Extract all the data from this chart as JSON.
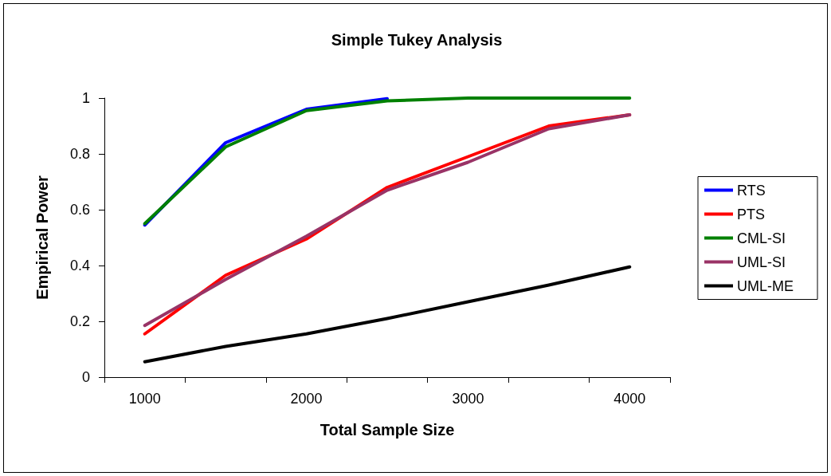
{
  "chart_data": {
    "type": "line",
    "title": "Simple Tukey Analysis",
    "xlabel": "Total Sample Size",
    "ylabel": "Empirical Power",
    "categories": [
      "1000",
      null,
      "2000",
      null,
      "3000",
      null,
      "4000"
    ],
    "series": [
      {
        "name": "RTS",
        "color": "#0000ff",
        "values": [
          0.545,
          0.84,
          0.96,
          0.998,
          null,
          null,
          null
        ]
      },
      {
        "name": "PTS",
        "color": "#ff0000",
        "values": [
          0.155,
          0.365,
          0.495,
          0.68,
          0.79,
          0.9,
          0.94
        ]
      },
      {
        "name": "CML-SI",
        "color": "#008000",
        "values": [
          0.55,
          0.825,
          0.955,
          0.99,
          1,
          1,
          1
        ]
      },
      {
        "name": "UML-SI",
        "color": "#993366",
        "values": [
          0.185,
          0.35,
          0.505,
          0.67,
          0.77,
          0.89,
          0.94
        ]
      },
      {
        "name": "UML-ME",
        "color": "#000000",
        "values": [
          0.055,
          0.11,
          0.155,
          0.21,
          0.27,
          0.33,
          0.395
        ]
      }
    ],
    "ylim": [
      0,
      1
    ],
    "yticks": [
      0,
      0.2,
      0.4,
      0.6,
      0.8,
      1
    ],
    "grid": false,
    "legend": "right",
    "marker": "none",
    "line_style": "solid"
  }
}
